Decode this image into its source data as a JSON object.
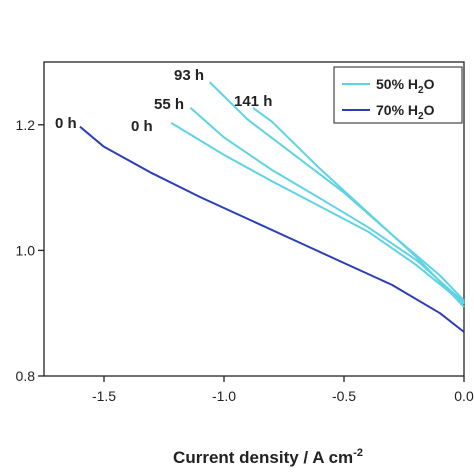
{
  "chart_data": {
    "type": "line",
    "title": "",
    "xlabel": "Current density / A cm",
    "xlabel_superscript": "-2",
    "ylabel": "",
    "xlim": [
      -1.75,
      0.0
    ],
    "ylim": [
      0.8,
      1.3
    ],
    "x_ticks": [
      -1.5,
      -1.0,
      -0.5,
      0.0
    ],
    "x_tick_labels": [
      "-1.5",
      "-1.0",
      "-0.5",
      "0.0"
    ],
    "y_ticks": [
      0.8,
      1.0,
      1.2
    ],
    "y_tick_labels": [
      "0.8",
      "1.0",
      "1.2"
    ],
    "grid": false,
    "legend_position": "top-right",
    "legend": [
      {
        "text": "50% H",
        "sub": "2",
        "tail": "O",
        "color": "#5ED3E3"
      },
      {
        "text": "70% H",
        "sub": "2",
        "tail": "O",
        "color": "#2B3EB8"
      }
    ],
    "series": [
      {
        "group": "50% H2O",
        "label": "0 h",
        "color": "#5ED3E3",
        "x": [
          -1.22,
          -1.0,
          -0.8,
          -0.6,
          -0.4,
          -0.2,
          0.0
        ],
        "y": [
          1.203,
          1.152,
          1.11,
          1.07,
          1.03,
          0.977,
          0.915
        ]
      },
      {
        "group": "50% H2O",
        "label": "55 h",
        "color": "#5ED3E3",
        "x": [
          -1.14,
          -1.0,
          -0.8,
          -0.6,
          -0.4,
          -0.2,
          0.0
        ],
        "y": [
          1.227,
          1.18,
          1.128,
          1.083,
          1.037,
          0.985,
          0.917
        ]
      },
      {
        "group": "50% H2O",
        "label": "93 h",
        "color": "#5ED3E3",
        "x": [
          -1.06,
          -0.9,
          -0.7,
          -0.5,
          -0.3,
          -0.1,
          0.0
        ],
        "y": [
          1.268,
          1.208,
          1.15,
          1.092,
          1.025,
          0.96,
          0.92
        ]
      },
      {
        "group": "50% H2O",
        "label": "141 h",
        "color": "#5ED3E3",
        "x": [
          -0.88,
          -0.8,
          -0.6,
          -0.4,
          -0.2,
          0.0
        ],
        "y": [
          1.227,
          1.205,
          1.13,
          1.06,
          0.99,
          0.91
        ]
      },
      {
        "group": "70% H2O",
        "label": "0 h",
        "color": "#2B3EB8",
        "x": [
          -1.6,
          -1.5,
          -1.3,
          -1.1,
          -0.9,
          -0.7,
          -0.5,
          -0.3,
          -0.1,
          0.0
        ],
        "y": [
          1.197,
          1.165,
          1.123,
          1.085,
          1.05,
          1.015,
          0.98,
          0.945,
          0.9,
          0.87
        ]
      }
    ]
  }
}
